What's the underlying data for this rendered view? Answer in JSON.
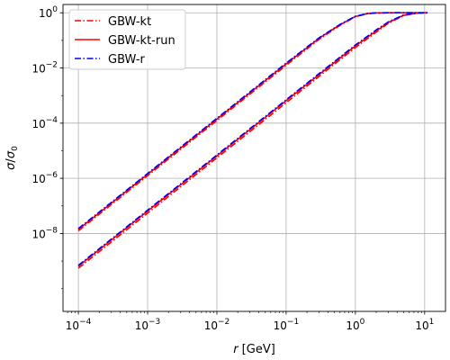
{
  "chart_data": {
    "type": "line",
    "xlabel": "r [GeV]",
    "ylabel": "σ/σ0",
    "xscale": "log",
    "yscale": "log",
    "xlim": [
      6e-05,
      20
    ],
    "ylim": [
      1.5e-11,
      2.0
    ],
    "grid": true,
    "legend_position": "top-left",
    "x_ticks": [
      0.0001,
      0.001,
      0.01,
      0.1,
      1,
      10
    ],
    "x_tick_labels": [
      {
        "base": "10",
        "exp": "−4"
      },
      {
        "base": "10",
        "exp": "−3"
      },
      {
        "base": "10",
        "exp": "−2"
      },
      {
        "base": "10",
        "exp": "−1"
      },
      {
        "base": "10",
        "exp": "0"
      },
      {
        "base": "10",
        "exp": "1"
      }
    ],
    "y_ticks": [
      1e-08,
      1e-06,
      0.0001,
      0.01,
      1
    ],
    "y_tick_labels": [
      {
        "base": "10",
        "exp": "−8"
      },
      {
        "base": "10",
        "exp": "−6"
      },
      {
        "base": "10",
        "exp": "−4"
      },
      {
        "base": "10",
        "exp": "−2"
      },
      {
        "base": "10",
        "exp": "0"
      }
    ],
    "series": [
      {
        "name": "GBW-kt",
        "color": "#ff0000",
        "style": "dashdot",
        "group": "upper",
        "x": [
          0.0001,
          0.001,
          0.01,
          0.1,
          0.3,
          0.6,
          1,
          1.5,
          2,
          3,
          5,
          11
        ],
        "y": [
          1.25e-08,
          1.25e-06,
          0.000125,
          0.0125,
          0.11,
          0.35,
          0.72,
          0.93,
          0.99,
          1.0,
          1.0,
          1.0
        ]
      },
      {
        "name": "GBW-kt-run",
        "color": "#ff0000",
        "style": "solid",
        "group": "upper",
        "x": [
          0.0001,
          0.001,
          0.01,
          0.1,
          0.3,
          0.6,
          1,
          1.5,
          2,
          3,
          5,
          11
        ],
        "y": [
          1.4e-08,
          1.4e-06,
          0.00014,
          0.014,
          0.12,
          0.37,
          0.74,
          0.94,
          0.99,
          1.0,
          1.0,
          1.0
        ]
      },
      {
        "name": "GBW-r",
        "color": "#0000ff",
        "style": "dashdot",
        "group": "upper",
        "x": [
          0.0001,
          0.001,
          0.01,
          0.1,
          0.3,
          0.6,
          1,
          1.5,
          2,
          3,
          5,
          11
        ],
        "y": [
          1.5e-08,
          1.5e-06,
          0.00015,
          0.015,
          0.125,
          0.38,
          0.75,
          0.94,
          0.99,
          1.0,
          1.0,
          1.0
        ]
      },
      {
        "name": "GBW-kt",
        "color": "#ff0000",
        "style": "dashdot",
        "group": "lower",
        "x": [
          0.0001,
          0.001,
          0.01,
          0.1,
          0.3,
          1,
          2,
          3,
          5,
          8,
          11
        ],
        "y": [
          5.5e-10,
          5.5e-08,
          5.5e-06,
          0.00055,
          0.005,
          0.055,
          0.2,
          0.42,
          0.8,
          0.98,
          1.0
        ]
      },
      {
        "name": "GBW-kt-run",
        "color": "#ff0000",
        "style": "solid",
        "group": "lower",
        "x": [
          0.0001,
          0.001,
          0.01,
          0.1,
          0.3,
          1,
          2,
          3,
          5,
          8,
          11
        ],
        "y": [
          6.5e-10,
          6.5e-08,
          6.5e-06,
          0.00065,
          0.0058,
          0.063,
          0.22,
          0.45,
          0.82,
          0.98,
          1.0
        ]
      },
      {
        "name": "GBW-r",
        "color": "#0000ff",
        "style": "dashdot",
        "group": "lower",
        "x": [
          0.0001,
          0.001,
          0.01,
          0.1,
          0.3,
          1,
          2,
          3,
          5,
          8,
          11
        ],
        "y": [
          7e-10,
          7e-08,
          7e-06,
          0.0007,
          0.0063,
          0.068,
          0.24,
          0.47,
          0.84,
          0.98,
          1.0
        ]
      }
    ],
    "legend": [
      {
        "label": "GBW-kt",
        "color": "#ff0000",
        "style": "dashdot"
      },
      {
        "label": "GBW-kt-run",
        "color": "#ff0000",
        "style": "solid"
      },
      {
        "label": "GBW-r",
        "color": "#0000ff",
        "style": "dashdot"
      }
    ]
  }
}
